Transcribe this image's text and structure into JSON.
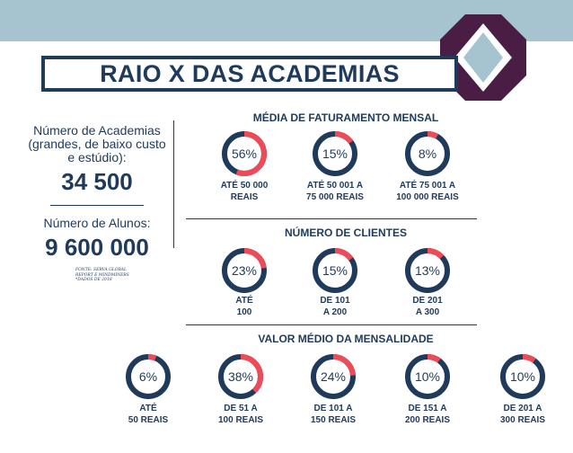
{
  "colors": {
    "navy": "#1f3a5a",
    "coral": "#ef4a57",
    "band": "#a6c4cf",
    "purple": "#4a1e44"
  },
  "title": "RAIO X DAS ACADEMIAS",
  "left": {
    "academias_label": "Número de Academias (grandes, de baixo custo e estúdio):",
    "academias_value": "34 500",
    "alunos_label": "Número de Alunos:",
    "alunos_value": "9 600 000",
    "source_line1": "FONTE: SERVA GLOBAL",
    "source_line2": "REPORT E MINDMINERS",
    "source_line3": "*DADOS DE 2018"
  },
  "sections": {
    "faturamento": {
      "title": "MÉDIA DE FATURAMENTO MENSAL",
      "items": [
        {
          "value": 56,
          "label": "56%",
          "caption1": "ATÉ 50 000",
          "caption2": "REAIS"
        },
        {
          "value": 15,
          "label": "15%",
          "caption1": "ATÉ 50 001 A",
          "caption2": "75 000 REAIS"
        },
        {
          "value": 8,
          "label": "8%",
          "caption1": "ATÉ 75 001 A",
          "caption2": "100 000 REAIS"
        }
      ]
    },
    "clientes": {
      "title": "NÚMERO DE CLIENTES",
      "items": [
        {
          "value": 23,
          "label": "23%",
          "caption1": "ATÉ",
          "caption2": "100"
        },
        {
          "value": 15,
          "label": "15%",
          "caption1": "DE 101",
          "caption2": "A 200"
        },
        {
          "value": 13,
          "label": "13%",
          "caption1": "DE 201",
          "caption2": "A 300"
        }
      ]
    },
    "mensalidade": {
      "title": "VALOR MÉDIO DA MENSALIDADE",
      "items": [
        {
          "value": 6,
          "label": "6%",
          "caption1": "ATÉ",
          "caption2": "50 REAIS"
        },
        {
          "value": 38,
          "label": "38%",
          "caption1": "DE 51 A",
          "caption2": "100 REAIS"
        },
        {
          "value": 24,
          "label": "24%",
          "caption1": "DE 101 A",
          "caption2": "150 REAIS"
        },
        {
          "value": 10,
          "label": "10%",
          "caption1": "DE 151 A",
          "caption2": "200 REAIS"
        },
        {
          "value": 10,
          "label": "10%",
          "caption1": "DE 201 A",
          "caption2": "300 REAIS"
        }
      ]
    }
  }
}
